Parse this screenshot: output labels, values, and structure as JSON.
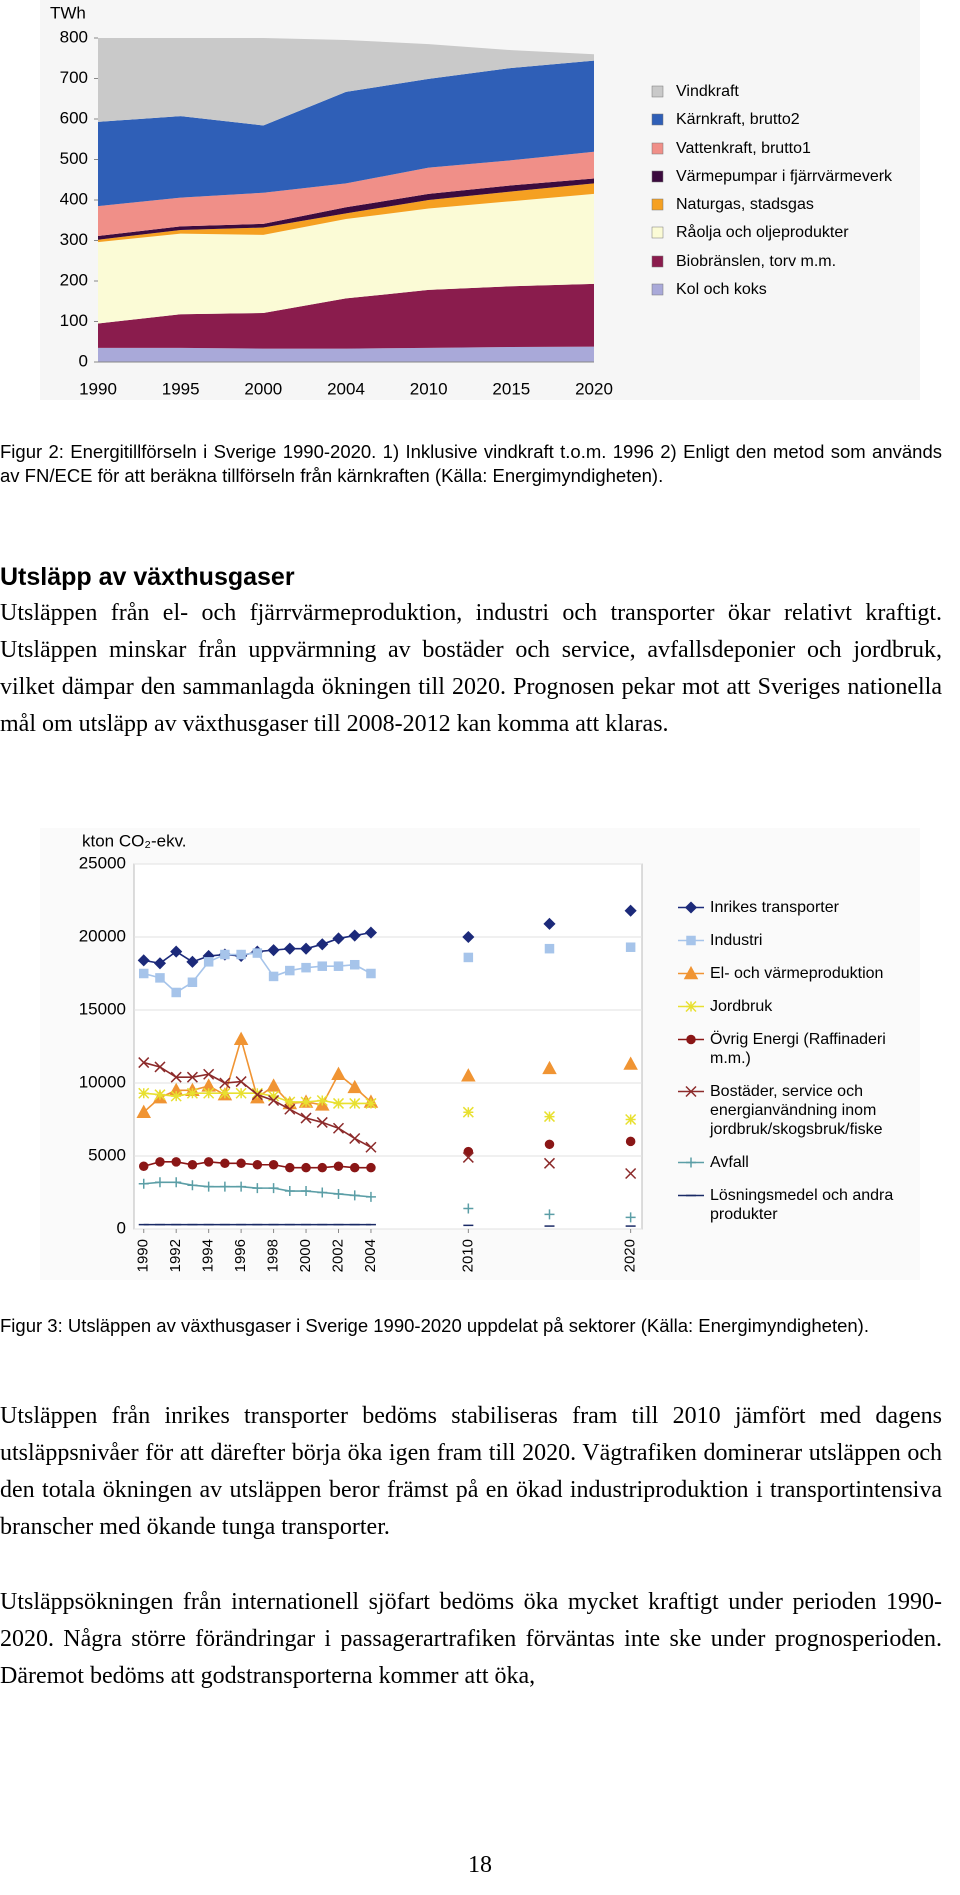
{
  "chart_data": [
    {
      "type": "area",
      "stacked": true,
      "y_label": "TWh",
      "categories": [
        "1990",
        "1995",
        "2000",
        "2004",
        "2010",
        "2015",
        "2020"
      ],
      "series": [
        {
          "name": "Vindkraft",
          "color": "#c9c9c9",
          "values": [
            207,
            193,
            216,
            128,
            86,
            44,
            16
          ]
        },
        {
          "name": "Kärnkraft, brutto2",
          "color": "#2f5fb7",
          "values": [
            208,
            201,
            166,
            226,
            219,
            228,
            225
          ]
        },
        {
          "name": "Vattenkraft, brutto1",
          "color": "#f08f88",
          "values": [
            74,
            71,
            77,
            59,
            65,
            62,
            66
          ]
        },
        {
          "name": "Värmepumpar i fjärrvärmeverk",
          "color": "#3b0b3e",
          "values": [
            9,
            9,
            9,
            15,
            15,
            15,
            12
          ]
        },
        {
          "name": "Naturgas, stadsgas",
          "color": "#f5a021",
          "values": [
            6,
            9,
            18,
            14,
            21,
            24,
            26
          ]
        },
        {
          "name": "Råolja och oljeprodukter",
          "color": "#fbfbd6",
          "values": [
            201,
            199,
            193,
            196,
            201,
            210,
            222
          ]
        },
        {
          "name": "Biobränslen, torv m.m.",
          "color": "#8a1c4d",
          "values": [
            60,
            83,
            88,
            124,
            143,
            150,
            155
          ]
        },
        {
          "name": "Kol och koks",
          "color": "#a9a9d9",
          "values": [
            35,
            35,
            33,
            33,
            35,
            37,
            38
          ]
        }
      ],
      "ylim": [
        0,
        800
      ],
      "yticks": [
        0,
        100,
        200,
        300,
        400,
        500,
        600,
        700,
        800
      ],
      "legend": "right"
    },
    {
      "type": "line",
      "y_label": "kton CO₂-ekv.",
      "x": [
        1990,
        1991,
        1992,
        1993,
        1994,
        1995,
        1996,
        1997,
        1998,
        1999,
        2000,
        2001,
        2002,
        2003,
        2004,
        2010,
        2015,
        2020
      ],
      "series": [
        {
          "name": "Inrikes transporter",
          "color": "#1c2a7a",
          "marker": "diamond",
          "values": [
            18400,
            18200,
            19000,
            18300,
            18700,
            18800,
            18700,
            19000,
            19100,
            19200,
            19200,
            19500,
            19900,
            20100,
            20300,
            20000,
            20900,
            21800
          ]
        },
        {
          "name": "Industri",
          "color": "#a6c4ea",
          "marker": "square",
          "values": [
            17500,
            17200,
            16200,
            16900,
            18300,
            18800,
            18800,
            18900,
            17300,
            17700,
            17900,
            18000,
            18000,
            18100,
            17500,
            18600,
            19200,
            19300
          ]
        },
        {
          "name": "El- och värmeproduktion",
          "color": "#f09433",
          "marker": "triangle",
          "values": [
            8000,
            9000,
            9500,
            9500,
            9800,
            9200,
            13000,
            9000,
            9800,
            8600,
            8700,
            8500,
            10600,
            9700,
            8700,
            10500,
            11000,
            11300
          ]
        },
        {
          "name": "Jordbruk",
          "color": "#e8e030",
          "marker": "star",
          "values": [
            9300,
            9200,
            9100,
            9300,
            9300,
            9300,
            9300,
            9300,
            9100,
            8700,
            8700,
            8800,
            8600,
            8600,
            8600,
            8000,
            7700,
            7500
          ]
        },
        {
          "name": "Övrig Energi (Raffinaderi m.m.)",
          "color": "#8a1616",
          "marker": "circle",
          "values": [
            4300,
            4600,
            4600,
            4400,
            4600,
            4500,
            4500,
            4400,
            4400,
            4200,
            4200,
            4200,
            4300,
            4200,
            4200,
            5300,
            5800,
            6000
          ]
        },
        {
          "name": "Bostäder, service och energianvändning inom jordbruk/skogsbruk/fiske",
          "color": "#8c2a2a",
          "marker": "x",
          "values": [
            11400,
            11100,
            10400,
            10400,
            10600,
            10000,
            10100,
            9200,
            8800,
            8200,
            7600,
            7300,
            6900,
            6200,
            5600,
            4900,
            4500,
            3800
          ]
        },
        {
          "name": "Avfall",
          "color": "#5b9ea6",
          "marker": "plus",
          "values": [
            3100,
            3200,
            3200,
            3000,
            2900,
            2900,
            2900,
            2800,
            2800,
            2600,
            2600,
            2500,
            2400,
            2300,
            2200,
            1400,
            1000,
            800
          ]
        },
        {
          "name": "Lösningsmedel och andra produkter",
          "color": "#1a2a66",
          "marker": "dash",
          "values": [
            300,
            300,
            300,
            300,
            300,
            300,
            300,
            300,
            300,
            300,
            300,
            300,
            300,
            300,
            300,
            250,
            200,
            200
          ]
        }
      ],
      "xlim": [
        1989.4,
        2020.7
      ],
      "xticks": [
        1990,
        1992,
        1994,
        1996,
        1998,
        2000,
        2002,
        2004,
        2010,
        2020
      ],
      "ylim": [
        0,
        25000
      ],
      "yticks": [
        0,
        5000,
        10000,
        15000,
        20000,
        25000
      ],
      "grid": true,
      "legend": "right"
    }
  ],
  "document": {
    "caption_1": "Figur 2: Energitillförseln i Sverige 1990-2020. 1) Inklusive vindkraft t.o.m. 1996 2) Enligt den metod som används av FN/ECE för att beräkna tillförseln från kärnkraften (Källa: Energimyndigheten).",
    "heading": "Utsläpp av växthusgaser",
    "paragraph_1": "Utsläppen från el- och fjärrvärmeproduktion, industri och transporter ökar relativt kraftigt. Utsläppen minskar från uppvärmning av bostäder och service, avfallsdeponier och jordbruk, vilket dämpar den sammanlagda ökningen till 2020. Prognosen pekar mot att Sveriges nationella mål om utsläpp av växthusgaser till 2008-2012 kan komma att klaras.",
    "caption_2": "Figur 3: Utsläppen av växthusgaser i Sverige 1990-2020 uppdelat på sektorer (Källa: Energimyndigheten).",
    "paragraph_2": "Utsläppen från inrikes transporter bedöms stabiliseras fram till 2010 jämfört med dagens utsläppsnivåer för att därefter börja öka igen fram till 2020. Vägtrafiken dominerar utsläppen och den totala ökningen av utsläppen beror främst på en ökad industriproduktion i transportintensiva branscher med ökande tunga transporter.",
    "paragraph_3": "Utsläppsökningen från internationell sjöfart bedöms öka mycket kraftigt under perioden 1990-2020. Några större förändringar i passagerartrafiken förväntas inte ske under prognosperioden. Däremot bedöms att godstransporterna kommer att öka,",
    "page_number": "18"
  }
}
